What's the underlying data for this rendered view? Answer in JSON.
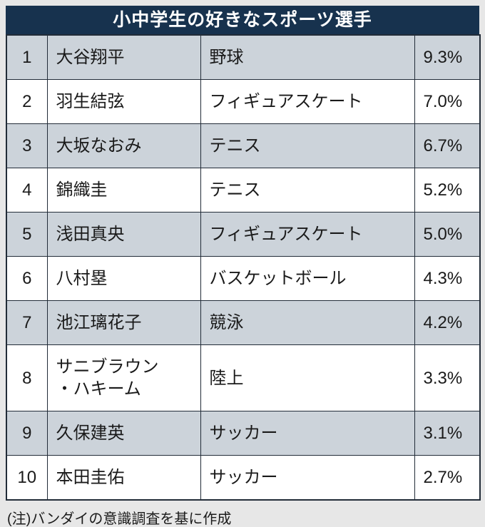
{
  "title": "小中学生の好きなスポーツ選手",
  "footer_note": "(注)バンダイの意識調査を基に作成",
  "colors": {
    "header_bg": "#17324e",
    "header_text": "#ffffff",
    "row_alt_bg": "#ccd3da",
    "row_bg": "#ffffff",
    "border": "#222c38",
    "text": "#1a1a1a",
    "page_bg": "#e7e7e7"
  },
  "table": {
    "rows": [
      {
        "rank": "1",
        "name": "大谷翔平",
        "sport": "野球",
        "share": "9.3%"
      },
      {
        "rank": "2",
        "name": "羽生結弦",
        "sport": "フィギュアスケート",
        "share": "7.0%"
      },
      {
        "rank": "3",
        "name": "大坂なおみ",
        "sport": "テニス",
        "share": "6.7%"
      },
      {
        "rank": "4",
        "name": "錦織圭",
        "sport": "テニス",
        "share": "5.2%"
      },
      {
        "rank": "5",
        "name": "浅田真央",
        "sport": "フィギュアスケート",
        "share": "5.0%"
      },
      {
        "rank": "6",
        "name": "八村塁",
        "sport": "バスケットボール",
        "share": "4.3%"
      },
      {
        "rank": "7",
        "name": "池江璃花子",
        "sport": "競泳",
        "share": "4.2%"
      },
      {
        "rank": "8",
        "name": "サニブラウン\n・ハキーム",
        "sport": "陸上",
        "share": "3.3%"
      },
      {
        "rank": "9",
        "name": "久保建英",
        "sport": "サッカー",
        "share": "3.1%"
      },
      {
        "rank": "10",
        "name": "本田圭佑",
        "sport": "サッカー",
        "share": "2.7%"
      }
    ]
  },
  "chart_data": {
    "type": "table",
    "title": "小中学生の好きなスポーツ選手",
    "note": "(注)バンダイの意識調査を基に作成",
    "rows": [
      {
        "rank": 1,
        "name": "大谷翔平",
        "sport": "野球",
        "share_percent": 9.3
      },
      {
        "rank": 2,
        "name": "羽生結弦",
        "sport": "フィギュアスケート",
        "share_percent": 7.0
      },
      {
        "rank": 3,
        "name": "大坂なおみ",
        "sport": "テニス",
        "share_percent": 6.7
      },
      {
        "rank": 4,
        "name": "錦織圭",
        "sport": "テニス",
        "share_percent": 5.2
      },
      {
        "rank": 5,
        "name": "浅田真央",
        "sport": "フィギュアスケート",
        "share_percent": 5.0
      },
      {
        "rank": 6,
        "name": "八村塁",
        "sport": "バスケットボール",
        "share_percent": 4.3
      },
      {
        "rank": 7,
        "name": "池江璃花子",
        "sport": "競泳",
        "share_percent": 4.2
      },
      {
        "rank": 8,
        "name": "サニブラウン・ハキーム",
        "sport": "陸上",
        "share_percent": 3.3
      },
      {
        "rank": 9,
        "name": "久保建英",
        "sport": "サッカー",
        "share_percent": 3.1
      },
      {
        "rank": 10,
        "name": "本田圭佑",
        "sport": "サッカー",
        "share_percent": 2.7
      }
    ]
  }
}
